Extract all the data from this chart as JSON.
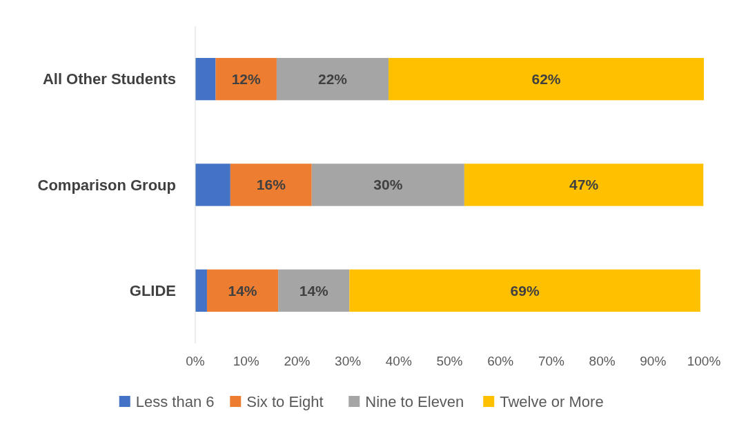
{
  "chart_data": {
    "type": "bar",
    "orientation": "horizontal",
    "stacked": true,
    "categories": [
      "All Other Students",
      "Comparison Group",
      "GLIDE"
    ],
    "series": [
      {
        "name": "Less than 6",
        "color": "#4472c4",
        "values": [
          4,
          6.9,
          2.3
        ],
        "value_labels": [
          null,
          null,
          null
        ]
      },
      {
        "name": "Six to Eight",
        "color": "#ed7d31",
        "values": [
          12,
          16,
          14
        ],
        "value_labels": [
          "12%",
          "16%",
          "14%"
        ]
      },
      {
        "name": "Nine to Eleven",
        "color": "#a5a5a5",
        "values": [
          22,
          30,
          14
        ],
        "value_labels": [
          "22%",
          "30%",
          "14%"
        ]
      },
      {
        "name": "Twelve or More",
        "color": "#ffc000",
        "values": [
          62,
          47,
          69
        ],
        "value_labels": [
          "62%",
          "47%",
          "69%"
        ]
      }
    ],
    "xlim": [
      0,
      100
    ],
    "xticks": [
      {
        "value": 0,
        "label": "0%"
      },
      {
        "value": 10,
        "label": "10%"
      },
      {
        "value": 20,
        "label": "20%"
      },
      {
        "value": 30,
        "label": "30%"
      },
      {
        "value": 40,
        "label": "40%"
      },
      {
        "value": 50,
        "label": "50%"
      },
      {
        "value": 60,
        "label": "60%"
      },
      {
        "value": 70,
        "label": "70%"
      },
      {
        "value": 80,
        "label": "80%"
      },
      {
        "value": 90,
        "label": "90%"
      },
      {
        "value": 100,
        "label": "100%"
      }
    ],
    "grid": false,
    "legend": "bottom"
  }
}
